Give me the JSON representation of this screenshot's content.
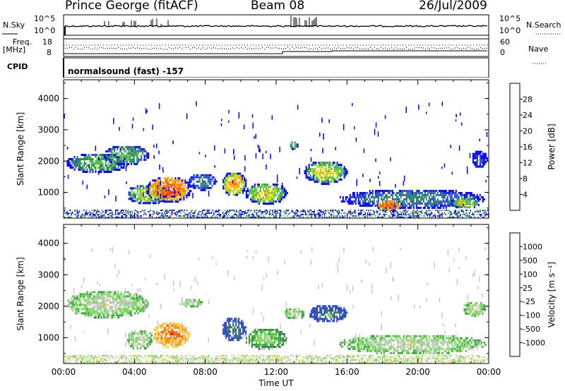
{
  "header": {
    "station": "Prince George (fitACF)",
    "beam": "Beam 08",
    "date": "26/Jul/2009"
  },
  "strip_panels": {
    "nsky_label": "N.Sky",
    "nsky_ticks": [
      "10^5",
      "10^0"
    ],
    "nsearch_label": "N.Search",
    "nsearch_ticks": [
      "10^5",
      "10^0"
    ],
    "freq_label_line1": "Freq.",
    "freq_label_line2": "[MHz]",
    "freq_ticks": [
      "18",
      "8"
    ],
    "nave_label": "Nave",
    "nave_ticks": [
      "60",
      "0"
    ],
    "cpid_label": "CPID",
    "cpid_value": "normalsound (fast) -157"
  },
  "chart_data": [
    {
      "type": "heatmap",
      "title": "",
      "ylabel": "Slant Range [km]",
      "xlabel": "",
      "ylim": [
        180,
        4600
      ],
      "yticks": [
        "4000",
        "3000",
        "2000",
        "1000"
      ],
      "ytick_values": [
        4000,
        3000,
        2000,
        1000
      ],
      "xlim": [
        0,
        24
      ],
      "colorbar": {
        "label": "Power [dB]",
        "ticks": [
          "28",
          "24",
          "20",
          "16",
          "12",
          "8",
          "4"
        ],
        "colors": [
          "#0000ff",
          "#2850c8",
          "#2e8b57",
          "#4fbf4f",
          "#d4d400",
          "#ff9a00",
          "#ff5a00",
          "#ff0000"
        ]
      },
      "echo_regions": [
        {
          "t0": 0.1,
          "t1": 3.6,
          "r0": 1650,
          "r1": 2300,
          "level": 3
        },
        {
          "t0": 2.2,
          "t1": 4.8,
          "r0": 1900,
          "r1": 2550,
          "level": 3
        },
        {
          "t0": 3.5,
          "t1": 6.0,
          "r0": 650,
          "r1": 1300,
          "level": 4
        },
        {
          "t0": 4.6,
          "t1": 7.2,
          "r0": 700,
          "r1": 1550,
          "level": 6
        },
        {
          "t0": 5.2,
          "t1": 6.6,
          "r0": 880,
          "r1": 1100,
          "level": 7
        },
        {
          "t0": 8.9,
          "t1": 10.3,
          "r0": 900,
          "r1": 1700,
          "level": 5
        },
        {
          "t0": 10.2,
          "t1": 12.6,
          "r0": 650,
          "r1": 1350,
          "level": 4
        },
        {
          "t0": 12.7,
          "t1": 13.2,
          "r0": 2400,
          "r1": 2700,
          "level": 3
        },
        {
          "t0": 13.5,
          "t1": 16.0,
          "r0": 1300,
          "r1": 2050,
          "level": 4
        },
        {
          "t0": 15.5,
          "t1": 23.8,
          "r0": 500,
          "r1": 1150,
          "level": 2
        },
        {
          "t0": 17.6,
          "t1": 19.1,
          "r0": 430,
          "r1": 800,
          "level": 6
        },
        {
          "t0": 21.8,
          "t1": 23.5,
          "r0": 500,
          "r1": 900,
          "level": 4
        },
        {
          "t0": 7.0,
          "t1": 8.6,
          "r0": 1100,
          "r1": 1650,
          "level": 2
        },
        {
          "t0": 23.0,
          "t1": 23.9,
          "r0": 1800,
          "r1": 2400,
          "level": 1
        }
      ]
    },
    {
      "type": "heatmap",
      "title": "",
      "ylabel": "Slant Range [km]",
      "xlabel": "Time UT",
      "ylim": [
        180,
        4600
      ],
      "yticks": [
        "4000",
        "3000",
        "2000",
        "1000"
      ],
      "ytick_values": [
        4000,
        3000,
        2000,
        1000
      ],
      "xlim": [
        0,
        24
      ],
      "xticks": [
        "00:00",
        "04:00",
        "08:00",
        "12:00",
        "16:00",
        "20:00",
        "00:00"
      ],
      "xtick_values": [
        0,
        4,
        8,
        12,
        16,
        20,
        24
      ],
      "colorbar": {
        "label": "Velocity [m s⁻¹]",
        "ticks": [
          "1000",
          "500",
          "100",
          "25",
          "-25",
          "-100",
          "-500",
          "-1000"
        ],
        "colors": [
          "#1f3fbf",
          "#2e7d3e",
          "#3aa838",
          "#7ad85a",
          "#c8c8c8",
          "#ffd23c",
          "#ff9a00",
          "#ff5a00",
          "#ff0000"
        ]
      },
      "echo_regions": [
        {
          "t0": 0.1,
          "t1": 4.8,
          "r0": 1650,
          "r1": 2550,
          "level": 4
        },
        {
          "t0": 3.5,
          "t1": 5.0,
          "r0": 650,
          "r1": 1300,
          "level": 4
        },
        {
          "t0": 5.0,
          "t1": 7.1,
          "r0": 700,
          "r1": 1550,
          "level": 7
        },
        {
          "t0": 5.4,
          "t1": 6.4,
          "r0": 850,
          "r1": 1050,
          "level": 6
        },
        {
          "t0": 8.9,
          "t1": 10.3,
          "r0": 900,
          "r1": 1700,
          "level": 1
        },
        {
          "t0": 10.2,
          "t1": 12.6,
          "r0": 650,
          "r1": 1350,
          "level": 3
        },
        {
          "t0": 12.4,
          "t1": 13.6,
          "r0": 1600,
          "r1": 2000,
          "level": 4
        },
        {
          "t0": 13.8,
          "t1": 16.0,
          "r0": 1500,
          "r1": 2100,
          "level": 1
        },
        {
          "t0": 15.5,
          "t1": 23.8,
          "r0": 500,
          "r1": 1150,
          "level": 4
        },
        {
          "t0": 6.5,
          "t1": 7.8,
          "r0": 2000,
          "r1": 2300,
          "level": 4
        },
        {
          "t0": 22.5,
          "t1": 23.8,
          "r0": 1700,
          "r1": 2200,
          "level": 4
        }
      ]
    }
  ]
}
